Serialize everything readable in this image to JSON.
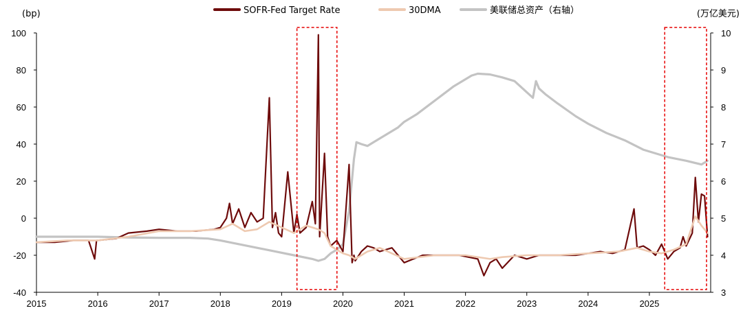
{
  "chart_data": {
    "type": "line",
    "title": "",
    "xlabel": "",
    "ylabel_left": "(bp)",
    "ylabel_right": "(万亿美元)",
    "x_range": [
      2015.0,
      2026.0
    ],
    "ylim_left": [
      -40,
      100
    ],
    "ylim_right": [
      3,
      10
    ],
    "x_ticks": [
      "2015",
      "2016",
      "2017",
      "2018",
      "2019",
      "2020",
      "2021",
      "2022",
      "2023",
      "2024",
      "2025"
    ],
    "y_ticks_left": [
      "-40",
      "-20",
      "0",
      "20",
      "40",
      "60",
      "80",
      "100"
    ],
    "y_ticks_right": [
      "3",
      "4",
      "5",
      "6",
      "7",
      "8",
      "9",
      "10"
    ],
    "grid": false,
    "legend_position": "top-center",
    "series": [
      {
        "name": "SOFR-Fed Target Rate",
        "axis": "left",
        "color": "#6e0b0b",
        "x": [
          2015.0,
          2015.3,
          2015.6,
          2015.85,
          2015.95,
          2015.98,
          2016.0,
          2016.3,
          2016.5,
          2016.8,
          2017.0,
          2017.3,
          2017.6,
          2017.9,
          2018.0,
          2018.1,
          2018.15,
          2018.2,
          2018.3,
          2018.4,
          2018.5,
          2018.6,
          2018.7,
          2018.8,
          2018.85,
          2018.9,
          2018.95,
          2019.0,
          2019.1,
          2019.2,
          2019.25,
          2019.3,
          2019.4,
          2019.5,
          2019.55,
          2019.6,
          2019.62,
          2019.7,
          2019.75,
          2019.8,
          2019.9,
          2020.0,
          2020.1,
          2020.15,
          2020.18,
          2020.2,
          2020.3,
          2020.4,
          2020.5,
          2020.6,
          2020.8,
          2020.9,
          2021.0,
          2021.3,
          2021.6,
          2021.9,
          2022.2,
          2022.3,
          2022.4,
          2022.5,
          2022.6,
          2022.8,
          2023.0,
          2023.2,
          2023.5,
          2023.8,
          2024.0,
          2024.2,
          2024.4,
          2024.6,
          2024.75,
          2024.8,
          2024.9,
          2025.0,
          2025.1,
          2025.2,
          2025.3,
          2025.4,
          2025.5,
          2025.55,
          2025.6,
          2025.7,
          2025.75,
          2025.8,
          2025.85,
          2025.9,
          2025.95
        ],
        "y": [
          -13,
          -13,
          -12,
          -12,
          -22,
          -12,
          -12,
          -11,
          -8,
          -7,
          -6,
          -7,
          -7,
          -6,
          -5,
          0,
          8,
          -3,
          5,
          -5,
          3,
          -2,
          0,
          65,
          -5,
          3,
          -8,
          -10,
          25,
          -8,
          2,
          -8,
          -5,
          9,
          -3,
          99,
          -10,
          35,
          -10,
          -15,
          -12,
          -18,
          29,
          -24,
          -20,
          -23,
          -18,
          -15,
          -16,
          -18,
          -16,
          -20,
          -24,
          -20,
          -20,
          -20,
          -22,
          -31,
          -24,
          -22,
          -27,
          -20,
          -22,
          -20,
          -20,
          -20,
          -19,
          -18,
          -19,
          -17,
          5,
          -16,
          -15,
          -17,
          -20,
          -14,
          -22,
          -18,
          -16,
          -10,
          -15,
          -8,
          22,
          -2,
          13,
          12,
          -10
        ]
      },
      {
        "name": "30DMA",
        "axis": "left",
        "color": "#eec9b0",
        "x": [
          2015.0,
          2015.5,
          2016.0,
          2016.5,
          2017.0,
          2017.5,
          2018.0,
          2018.2,
          2018.4,
          2018.6,
          2018.8,
          2019.0,
          2019.2,
          2019.4,
          2019.6,
          2019.7,
          2019.8,
          2020.0,
          2020.1,
          2020.2,
          2020.4,
          2020.6,
          2020.8,
          2021.0,
          2021.5,
          2022.0,
          2022.4,
          2022.6,
          2023.0,
          2023.5,
          2024.0,
          2024.5,
          2024.8,
          2025.0,
          2025.2,
          2025.4,
          2025.6,
          2025.75,
          2025.85,
          2025.95
        ],
        "y": [
          -13,
          -12,
          -12,
          -10,
          -7,
          -7,
          -6,
          -3,
          -7,
          -6,
          -2,
          -5,
          -8,
          -4,
          -6,
          -8,
          -15,
          -19,
          -20,
          -22,
          -18,
          -16,
          -19,
          -22,
          -20,
          -20,
          -22,
          -21,
          -20,
          -20,
          -19,
          -18,
          -16,
          -18,
          -19,
          -17,
          -14,
          1,
          -4,
          -8
        ]
      },
      {
        "name": "美联储总资产（右轴）",
        "axis": "right",
        "color": "#c3c3c3",
        "x": [
          2015.0,
          2015.5,
          2016.0,
          2016.5,
          2017.0,
          2017.5,
          2017.8,
          2018.0,
          2018.3,
          2018.6,
          2018.9,
          2019.2,
          2019.5,
          2019.6,
          2019.7,
          2019.8,
          2019.9,
          2020.0,
          2020.1,
          2020.18,
          2020.22,
          2020.3,
          2020.4,
          2020.5,
          2020.7,
          2020.9,
          2021.0,
          2021.2,
          2021.4,
          2021.6,
          2021.8,
          2022.0,
          2022.1,
          2022.2,
          2022.4,
          2022.6,
          2022.8,
          2023.0,
          2023.1,
          2023.15,
          2023.2,
          2023.3,
          2023.5,
          2023.8,
          2024.0,
          2024.3,
          2024.6,
          2024.9,
          2025.1,
          2025.3,
          2025.6,
          2025.85,
          2025.95
        ],
        "y": [
          4.5,
          4.5,
          4.5,
          4.48,
          4.47,
          4.47,
          4.45,
          4.4,
          4.3,
          4.2,
          4.1,
          4.0,
          3.9,
          3.85,
          3.9,
          4.05,
          4.15,
          4.3,
          5.2,
          6.6,
          7.05,
          7.0,
          6.95,
          7.05,
          7.25,
          7.45,
          7.6,
          7.8,
          8.05,
          8.3,
          8.55,
          8.75,
          8.85,
          8.9,
          8.88,
          8.8,
          8.7,
          8.4,
          8.25,
          8.7,
          8.5,
          8.35,
          8.1,
          7.75,
          7.55,
          7.3,
          7.1,
          6.85,
          6.75,
          6.65,
          6.55,
          6.45,
          6.55
        ]
      }
    ],
    "annotations": [
      {
        "type": "dashed-box",
        "color": "#e60000",
        "x_range": [
          2019.25,
          2019.97
        ],
        "ylim": [
          -40,
          100
        ]
      },
      {
        "type": "dashed-box",
        "color": "#e60000",
        "x_range": [
          2025.25,
          2026.0
        ],
        "ylim": [
          -40,
          100
        ]
      }
    ]
  }
}
